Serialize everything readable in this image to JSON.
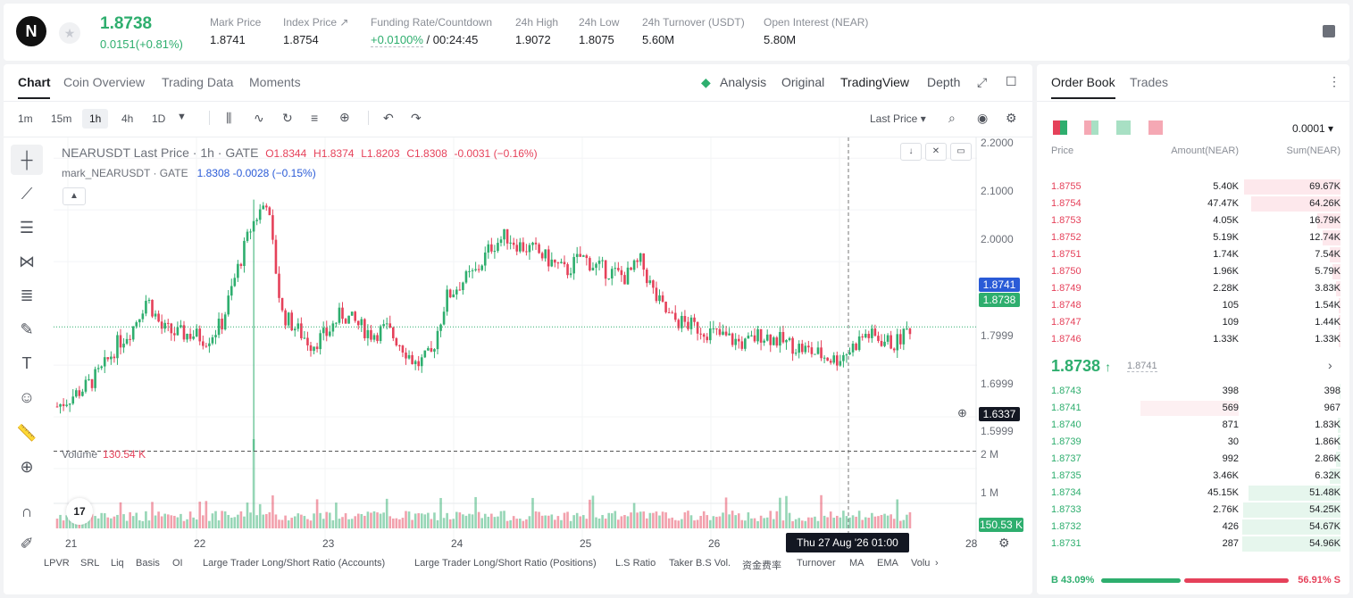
{
  "header": {
    "logo": "N",
    "price": "1.8738",
    "change": "0.0151(+0.81%)",
    "stats": [
      {
        "label": "Mark Price",
        "value": "1.8741"
      },
      {
        "label": "Index Price ↗",
        "value": "1.8754"
      },
      {
        "label": "Funding Rate/Countdown",
        "value": "+0.0100%",
        "value2": "/ 00:24:45"
      },
      {
        "label": "24h High",
        "value": "1.9072"
      },
      {
        "label": "24h Low",
        "value": "1.8075"
      },
      {
        "label": "24h Turnover (USDT)",
        "value": "5.60M"
      },
      {
        "label": "Open Interest (NEAR)",
        "value": "5.80M"
      }
    ]
  },
  "chart_tabs": [
    "Chart",
    "Coin Overview",
    "Trading Data",
    "Moments"
  ],
  "view_tabs": [
    "Analysis",
    "Original",
    "TradingView",
    "Depth"
  ],
  "timeframes": [
    "1m",
    "15m",
    "1h",
    "4h",
    "1D"
  ],
  "price_source": "Last Price",
  "legend": {
    "symbol": "NEARUSDT Last Price · 1h · GATE",
    "o": "O1.8344",
    "h": "H1.8374",
    "l": "L1.8203",
    "c": "C1.8308",
    "chg": "-0.0031 (−0.16%)",
    "mark_name": "mark_NEARUSDT · GATE",
    "mark_val": "1.8308 -0.0028 (−0.15%)"
  },
  "volume_label": "Volume",
  "volume_val": "130.54 K",
  "chart_data": {
    "type": "candlestick",
    "price_axis": [
      "2.2000",
      "2.1000",
      "2.0000",
      "1.7999",
      "1.6999",
      "1.5999"
    ],
    "volume_axis": [
      "2 M",
      "1 M"
    ],
    "x_ticks": [
      "21",
      "22",
      "23",
      "24",
      "25",
      "26",
      "28"
    ],
    "ylim": [
      1.55,
      2.24
    ],
    "mark_price": "1.8741",
    "last_price": "1.8738",
    "crosshair_price": "1.6337",
    "volume_now": "150.53 K",
    "crosshair_time": "Thu 27 Aug '26   01:00",
    "close_path": [
      1.72,
      1.74,
      1.76,
      1.79,
      1.84,
      1.87,
      1.93,
      1.87,
      1.86,
      1.86,
      1.85,
      1.88,
      1.98,
      2.07,
      2.12,
      1.9,
      1.87,
      1.84,
      1.86,
      1.9,
      1.88,
      1.86,
      1.87,
      1.84,
      1.8,
      1.82,
      1.93,
      1.96,
      1.98,
      2.03,
      2.05,
      2.03,
      2.02,
      2.0,
      1.98,
      2.01,
      1.99,
      1.98,
      1.97,
      2.0,
      1.93,
      1.89,
      1.88,
      1.87,
      1.86,
      1.85,
      1.84,
      1.86,
      1.85,
      1.84,
      1.83,
      1.82,
      1.81,
      1.83,
      1.86,
      1.85,
      1.84,
      1.8738
    ]
  },
  "indicators": [
    "LPVR",
    "SRL",
    "Liq",
    "Basis",
    "OI",
    "Large Trader Long/Short Ratio (Accounts)",
    "Large Trader Long/Short Ratio (Positions)",
    "L.S Ratio",
    "Taker B.S Vol.",
    "资金费率",
    "Turnover",
    "MA",
    "EMA",
    "Volu"
  ],
  "orderbook": {
    "tabs": [
      "Order Book",
      "Trades"
    ],
    "precision": "0.0001",
    "cols": [
      "Price",
      "Amount(NEAR)",
      "Sum(NEAR)"
    ],
    "asks": [
      {
        "p": "1.8755",
        "a": "5.40K",
        "s": "69.67K",
        "d": 0.98
      },
      {
        "p": "1.8754",
        "a": "47.47K",
        "s": "64.26K",
        "d": 0.91
      },
      {
        "p": "1.8753",
        "a": "4.05K",
        "s": "16.79K",
        "d": 0.24
      },
      {
        "p": "1.8752",
        "a": "5.19K",
        "s": "12.74K",
        "d": 0.18
      },
      {
        "p": "1.8751",
        "a": "1.74K",
        "s": "7.54K",
        "d": 0.11
      },
      {
        "p": "1.8750",
        "a": "1.96K",
        "s": "5.79K",
        "d": 0.08
      },
      {
        "p": "1.8749",
        "a": "2.28K",
        "s": "3.83K",
        "d": 0.05
      },
      {
        "p": "1.8748",
        "a": "105",
        "s": "1.54K",
        "d": 0.02
      },
      {
        "p": "1.8747",
        "a": "109",
        "s": "1.44K",
        "d": 0.02
      },
      {
        "p": "1.8746",
        "a": "1.33K",
        "s": "1.33K",
        "d": 0.02
      }
    ],
    "mid_price": "1.8738",
    "mid_arrow": "↑",
    "mid_mark": "1.8741",
    "bids": [
      {
        "p": "1.8743",
        "a": "398",
        "s": "398",
        "d": 0.01
      },
      {
        "p": "1.8741",
        "a": "569",
        "s": "967",
        "d": 0.55,
        "hl": true
      },
      {
        "p": "1.8740",
        "a": "871",
        "s": "1.83K",
        "d": 0.03
      },
      {
        "p": "1.8739",
        "a": "30",
        "s": "1.86K",
        "d": 0.03
      },
      {
        "p": "1.8737",
        "a": "992",
        "s": "2.86K",
        "d": 0.05
      },
      {
        "p": "1.8735",
        "a": "3.46K",
        "s": "6.32K",
        "d": 0.11
      },
      {
        "p": "1.8734",
        "a": "45.15K",
        "s": "51.48K",
        "d": 0.94
      },
      {
        "p": "1.8733",
        "a": "2.76K",
        "s": "54.25K",
        "d": 0.99
      },
      {
        "p": "1.8732",
        "a": "426",
        "s": "54.67K",
        "d": 1.0
      },
      {
        "p": "1.8731",
        "a": "287",
        "s": "54.96K",
        "d": 1.0
      }
    ],
    "buy_label": "B 43.09%",
    "sell_label": "56.91% S",
    "buy_pct": 43.09
  },
  "colors": {
    "up": "#2eae6e",
    "down": "#e5415a",
    "accent": "#2a5bd7"
  }
}
